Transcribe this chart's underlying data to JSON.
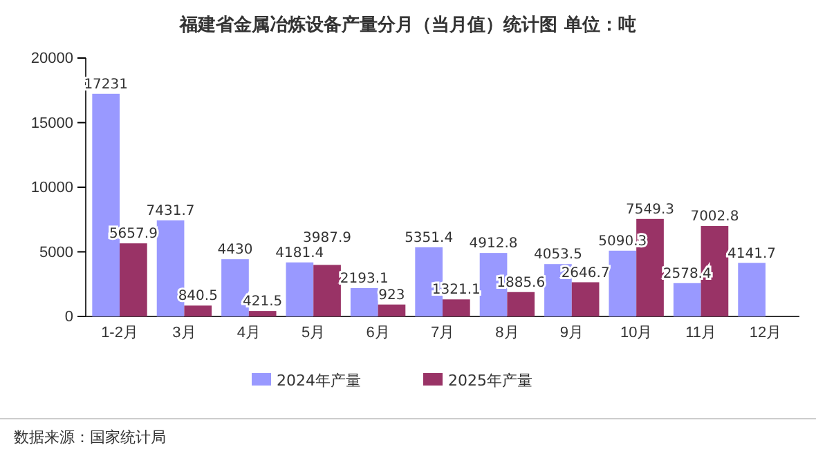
{
  "chart_data": {
    "type": "bar",
    "title": "福建省金属冶炼设备产量分月（当月值）统计图 单位：吨",
    "categories": [
      "1-2月",
      "3月",
      "4月",
      "5月",
      "6月",
      "7月",
      "8月",
      "9月",
      "10月",
      "11月",
      "12月"
    ],
    "series": [
      {
        "name": "2024年产量",
        "color": "#9999ff",
        "values": [
          17231,
          7431.7,
          4430,
          4181.4,
          2193.1,
          5351.4,
          4912.8,
          4053.5,
          5090.3,
          2578.4,
          4141.7
        ]
      },
      {
        "name": "2025年产量",
        "color": "#993366",
        "values": [
          5657.9,
          840.5,
          421.5,
          3987.9,
          923,
          1321.1,
          1885.6,
          2646.7,
          7549.3,
          7002.8,
          null
        ]
      }
    ],
    "ylim": [
      0,
      20000
    ],
    "yticks": [
      0,
      5000,
      10000,
      15000,
      20000
    ],
    "data_labels": true,
    "legend": "bottom",
    "annotations": [
      "数据来源：国家统计局"
    ]
  }
}
